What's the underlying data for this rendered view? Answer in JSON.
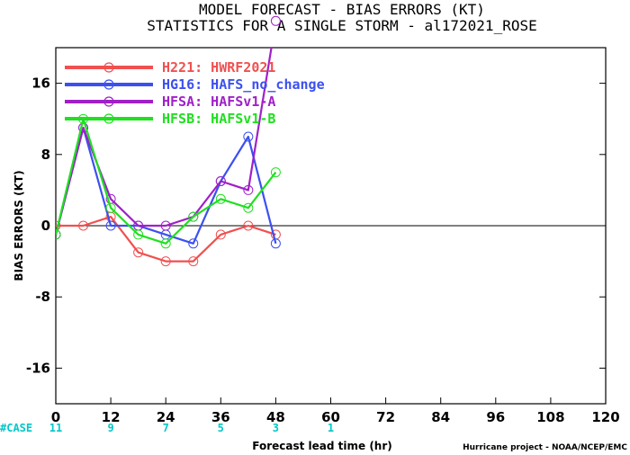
{
  "title": {
    "line1": "MODEL FORECAST - BIAS ERRORS (KT)",
    "line2": "STATISTICS FOR A SINGLE STORM - al172021_ROSE"
  },
  "credit": "Hurricane project - NOAA/NCEP/EMC",
  "cases": {
    "label": "#CASE",
    "counts": [
      11,
      9,
      7,
      5,
      3,
      1
    ],
    "lead_times": [
      0,
      12,
      24,
      36,
      48,
      60
    ],
    "color": "#00c8c8"
  },
  "chart_data": {
    "type": "line",
    "title": "MODEL FORECAST - BIAS ERRORS (KT)",
    "subtitle": "STATISTICS FOR A SINGLE STORM - al172021_ROSE",
    "xlabel": "Forecast lead time (hr)",
    "ylabel": "BIAS ERRORS (KT)",
    "xlim": [
      0,
      120
    ],
    "ylim": [
      -20,
      20
    ],
    "xticks": [
      0,
      12,
      24,
      36,
      48,
      60,
      72,
      84,
      96,
      108,
      120
    ],
    "yticks": [
      -16,
      -8,
      0,
      8,
      16
    ],
    "grid": false,
    "zero_line": true,
    "legend_position": "top-left",
    "series": [
      {
        "name": "H221: HWRF2021",
        "color": "#f05050",
        "x": [
          0,
          6,
          12,
          18,
          24,
          30,
          36,
          42,
          48
        ],
        "values": [
          0,
          0,
          1,
          -3,
          -4,
          -4,
          -1,
          0,
          -1
        ]
      },
      {
        "name": "HG16: HAFS_no_change",
        "color": "#3c50f0",
        "x": [
          0,
          6,
          12,
          18,
          24,
          30,
          36,
          42,
          48
        ],
        "values": [
          -1,
          11,
          0,
          0,
          -1,
          -2,
          5,
          10,
          -2
        ]
      },
      {
        "name": "HFSA: HAFSv1-A",
        "color": "#a020c8",
        "x": [
          0,
          6,
          12,
          18,
          24,
          30,
          36,
          42,
          48
        ],
        "values": [
          -1,
          11,
          3,
          0,
          0,
          1,
          5,
          4,
          23
        ]
      },
      {
        "name": "HFSB: HAFSv1-B",
        "color": "#20e020",
        "x": [
          0,
          6,
          12,
          18,
          24,
          30,
          36,
          42,
          48
        ],
        "values": [
          -1,
          12,
          2,
          -1,
          -2,
          1,
          3,
          2,
          6
        ]
      }
    ]
  }
}
